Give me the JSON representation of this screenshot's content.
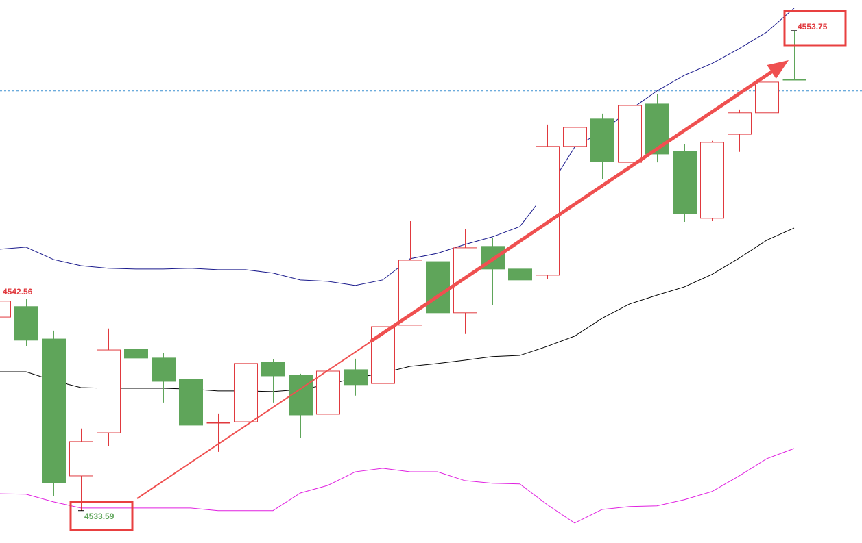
{
  "chart_data": {
    "type": "candlestick",
    "ylim": [
      4532.23,
      4555.04
    ],
    "up_color": "#e0393e",
    "down_color": "#5fa55a",
    "candle_colors": [
      "up",
      "down",
      "down",
      "up",
      "up",
      "down",
      "down",
      "down",
      "up",
      "up",
      "down",
      "down",
      "up",
      "down",
      "up",
      "up",
      "down",
      "up",
      "down",
      "down",
      "up",
      "up",
      "down",
      "up",
      "down",
      "down",
      "up",
      "up",
      "up",
      "down"
    ],
    "open": [
      4541.72,
      4542.16,
      4540.8,
      4535.05,
      4536.86,
      4540.37,
      4540.0,
      4539.11,
      4537.27,
      4537.32,
      4539.83,
      4539.28,
      4537.64,
      4539.51,
      4538.93,
      4541.38,
      4544.05,
      4541.9,
      4544.69,
      4543.74,
      4543.48,
      4548.89,
      4550.04,
      4548.22,
      4550.67,
      4548.68,
      4545.87,
      4549.4,
      4550.3,
      4551.68
    ],
    "high": [
      4542.56,
      4542.47,
      4541.15,
      4537.04,
      4541.24,
      4540.43,
      4540.2,
      4539.11,
      4537.67,
      4540.29,
      4539.94,
      4539.34,
      4539.8,
      4539.97,
      4541.61,
      4545.75,
      4544.28,
      4545.43,
      4545.03,
      4544.4,
      4549.81,
      4550.04,
      4550.27,
      4550.67,
      4551.07,
      4549.0,
      4549.12,
      4550.44,
      4551.85,
      4553.75
    ],
    "low": [
      4541.72,
      4540.49,
      4534.19,
      4533.59,
      4536.29,
      4538.56,
      4538.13,
      4536.58,
      4536.06,
      4536.86,
      4538.13,
      4536.63,
      4537.12,
      4538.42,
      4538.7,
      4541.38,
      4541.24,
      4541.01,
      4542.24,
      4543.13,
      4543.31,
      4547.76,
      4547.51,
      4548.14,
      4548.22,
      4545.72,
      4545.75,
      4548.66,
      4549.72,
      4551.68
    ],
    "close": [
      4542.39,
      4540.75,
      4534.76,
      4536.49,
      4540.34,
      4540.0,
      4539.02,
      4537.18,
      4537.27,
      4539.77,
      4539.25,
      4537.61,
      4539.45,
      4538.88,
      4541.32,
      4544.11,
      4541.9,
      4544.63,
      4543.74,
      4543.28,
      4548.89,
      4549.69,
      4548.25,
      4550.61,
      4548.57,
      4546.07,
      4549.06,
      4550.3,
      4551.59,
      4551.68
    ],
    "series": [
      {
        "color": "#1a1a8c",
        "values": [
          4544.57,
          4544.66,
          4544.14,
          4543.88,
          4543.77,
          4543.74,
          4543.74,
          4543.77,
          4543.71,
          4543.71,
          4543.57,
          4543.28,
          4543.22,
          4543.05,
          4543.28,
          4544.17,
          4544.4,
          4544.77,
          4545.09,
          4545.52,
          4547.02,
          4548.86,
          4549.52,
          4550.41,
          4551.22,
          4551.88,
          4552.37,
          4553.0,
          4553.69,
          4554.7
        ]
      },
      {
        "color": "#000000",
        "values": [
          4539.42,
          4539.42,
          4539.05,
          4538.76,
          4538.73,
          4538.73,
          4538.73,
          4538.7,
          4538.62,
          4538.62,
          4538.59,
          4538.68,
          4538.88,
          4539.16,
          4539.37,
          4539.65,
          4539.77,
          4539.91,
          4540.06,
          4540.11,
          4540.49,
          4540.92,
          4541.67,
          4542.27,
          4542.64,
          4542.99,
          4543.51,
          4544.2,
          4544.95,
          4545.46
        ]
      },
      {
        "color": "#e020e0",
        "values": [
          4534.3,
          4534.28,
          4533.96,
          4533.7,
          4533.7,
          4533.7,
          4533.7,
          4533.7,
          4533.59,
          4533.59,
          4533.59,
          4534.33,
          4534.65,
          4535.22,
          4535.37,
          4535.22,
          4535.22,
          4534.85,
          4534.74,
          4534.71,
          4533.84,
          4533.07,
          4533.64,
          4533.76,
          4533.79,
          4534.05,
          4534.39,
          4535.05,
          4535.77,
          4536.2
        ]
      }
    ],
    "hline": {
      "value": 4551.22,
      "color": "#3a8fd0"
    }
  }
}
